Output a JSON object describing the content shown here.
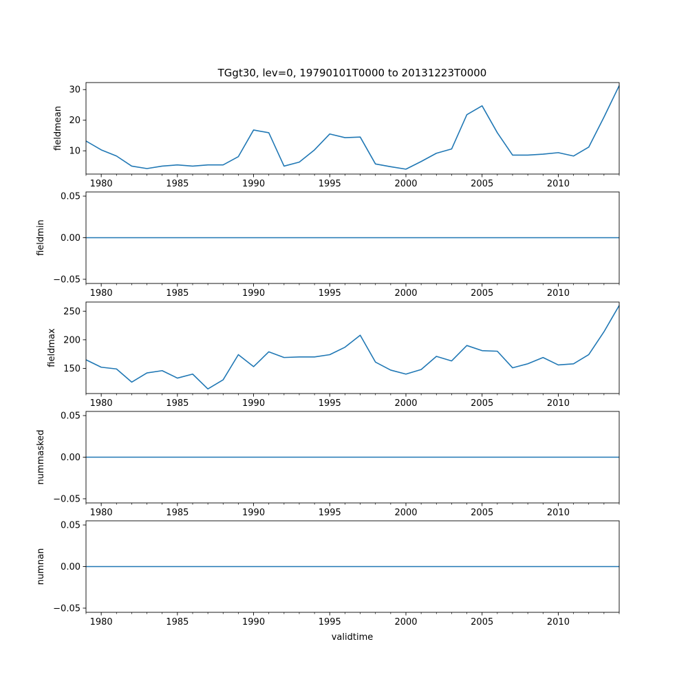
{
  "title": "TGgt30, lev=0, 19790101T0000 to 20131223T0000",
  "xlabel": "validtime",
  "line_color": "#1f77b4",
  "chart_data": [
    {
      "type": "line",
      "ylabel": "fieldmean",
      "xlim": [
        1979,
        2014
      ],
      "ylim": [
        2.4,
        32.3
      ],
      "yticks": [
        10,
        20,
        30
      ],
      "ytick_labels": [
        "10",
        "20",
        "30"
      ],
      "xticks": [
        1980,
        1985,
        1990,
        1995,
        2000,
        2005,
        2010
      ],
      "x": [
        1979,
        1980,
        1981,
        1982,
        1983,
        1984,
        1985,
        1986,
        1987,
        1988,
        1989,
        1990,
        1991,
        1992,
        1993,
        1994,
        1995,
        1996,
        1997,
        1998,
        1999,
        2000,
        2001,
        2002,
        2003,
        2004,
        2005,
        2006,
        2007,
        2008,
        2009,
        2010,
        2011,
        2012,
        2013,
        2014
      ],
      "values": [
        13.2,
        10.3,
        8.3,
        5.0,
        4.2,
        5.0,
        5.4,
        5.0,
        5.4,
        5.4,
        8.1,
        16.8,
        15.9,
        5.0,
        6.3,
        10.3,
        15.5,
        14.3,
        14.5,
        5.7,
        4.8,
        4.0,
        6.5,
        9.2,
        10.6,
        21.8,
        24.7,
        15.9,
        8.6,
        8.6,
        8.9,
        9.4,
        8.3,
        11.2,
        21.0,
        31.3
      ],
      "grid": false
    },
    {
      "type": "line",
      "ylabel": "fieldmin",
      "xlim": [
        1979,
        2014
      ],
      "ylim": [
        -0.055,
        0.055
      ],
      "yticks": [
        -0.05,
        0.0,
        0.05
      ],
      "ytick_labels": [
        "−0.05",
        "0.00",
        "0.05"
      ],
      "xticks": [
        1980,
        1985,
        1990,
        1995,
        2000,
        2005,
        2010
      ],
      "x": [
        1979,
        2014
      ],
      "values": [
        0,
        0
      ],
      "grid": false
    },
    {
      "type": "line",
      "ylabel": "fieldmax",
      "xlim": [
        1979,
        2014
      ],
      "ylim": [
        106,
        266
      ],
      "yticks": [
        150,
        200,
        250
      ],
      "ytick_labels": [
        "150",
        "200",
        "250"
      ],
      "xticks": [
        1980,
        1985,
        1990,
        1995,
        2000,
        2005,
        2010
      ],
      "x": [
        1979,
        1980,
        1981,
        1982,
        1983,
        1984,
        1985,
        1986,
        1987,
        1988,
        1989,
        1990,
        1991,
        1992,
        1993,
        1994,
        1995,
        1996,
        1997,
        1998,
        1999,
        2000,
        2001,
        2002,
        2003,
        2004,
        2005,
        2006,
        2007,
        2008,
        2009,
        2010,
        2011,
        2012,
        2013,
        2014
      ],
      "values": [
        165,
        152,
        149,
        126,
        142,
        146,
        133,
        140,
        114,
        130,
        174,
        153,
        179,
        169,
        170,
        170,
        174,
        187,
        208,
        161,
        147,
        140,
        148,
        171,
        163,
        190,
        181,
        180,
        151,
        158,
        169,
        156,
        158,
        174,
        214,
        260
      ],
      "grid": false
    },
    {
      "type": "line",
      "ylabel": "nummasked",
      "xlim": [
        1979,
        2014
      ],
      "ylim": [
        -0.055,
        0.055
      ],
      "yticks": [
        -0.05,
        0.0,
        0.05
      ],
      "ytick_labels": [
        "−0.05",
        "0.00",
        "0.05"
      ],
      "xticks": [
        1980,
        1985,
        1990,
        1995,
        2000,
        2005,
        2010
      ],
      "x": [
        1979,
        2014
      ],
      "values": [
        0,
        0
      ],
      "grid": false
    },
    {
      "type": "line",
      "ylabel": "numnan",
      "xlim": [
        1979,
        2014
      ],
      "ylim": [
        -0.055,
        0.055
      ],
      "yticks": [
        -0.05,
        0.0,
        0.05
      ],
      "ytick_labels": [
        "−0.05",
        "0.00",
        "0.05"
      ],
      "xticks": [
        1980,
        1985,
        1990,
        1995,
        2000,
        2005,
        2010
      ],
      "x": [
        1979,
        2014
      ],
      "values": [
        0,
        0
      ],
      "grid": false
    }
  ]
}
